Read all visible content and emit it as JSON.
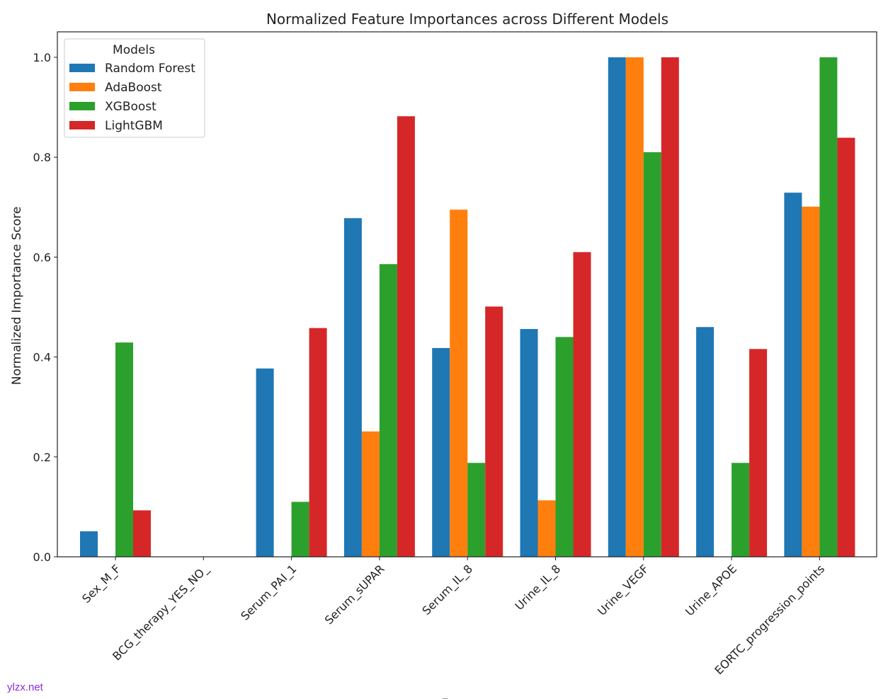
{
  "chart_data": {
    "type": "bar",
    "title": "Normalized Feature Importances across Different Models",
    "xlabel": "Features",
    "ylabel": "Normalized Importance Score",
    "ylim": [
      0,
      1.05
    ],
    "yticks": [
      "0.0",
      "0.2",
      "0.4",
      "0.6",
      "0.8",
      "1.0"
    ],
    "grid": false,
    "legend": {
      "title": "Models",
      "placement": "top-left"
    },
    "categories": [
      "Sex_M_F",
      "BCG_therapy_YES_NO_",
      "Serum_PAI_1",
      "Serum_sUPAR",
      "Serum_IL_8",
      "Urine_IL_8",
      "Urine_VEGF",
      "Urine_APOE",
      "EORTC_progression_points"
    ],
    "series": [
      {
        "name": "Random Forest",
        "color": "#1f77b4",
        "values": [
          0.051,
          0,
          0.377,
          0.678,
          0.418,
          0.456,
          1.0,
          0.46,
          0.729
        ]
      },
      {
        "name": "AdaBoost",
        "color": "#ff7f0e",
        "values": [
          0,
          0,
          0,
          0.251,
          0.695,
          0.113,
          1.0,
          0,
          0.701
        ]
      },
      {
        "name": "XGBoost",
        "color": "#2ca02c",
        "values": [
          0.429,
          0,
          0.11,
          0.586,
          0.188,
          0.44,
          0.81,
          0.188,
          1.0
        ]
      },
      {
        "name": "LightGBM",
        "color": "#d62728",
        "values": [
          0.093,
          0,
          0.458,
          0.882,
          0.501,
          0.61,
          1.0,
          0.416,
          0.839
        ]
      }
    ]
  },
  "watermark": "ylzx.net"
}
